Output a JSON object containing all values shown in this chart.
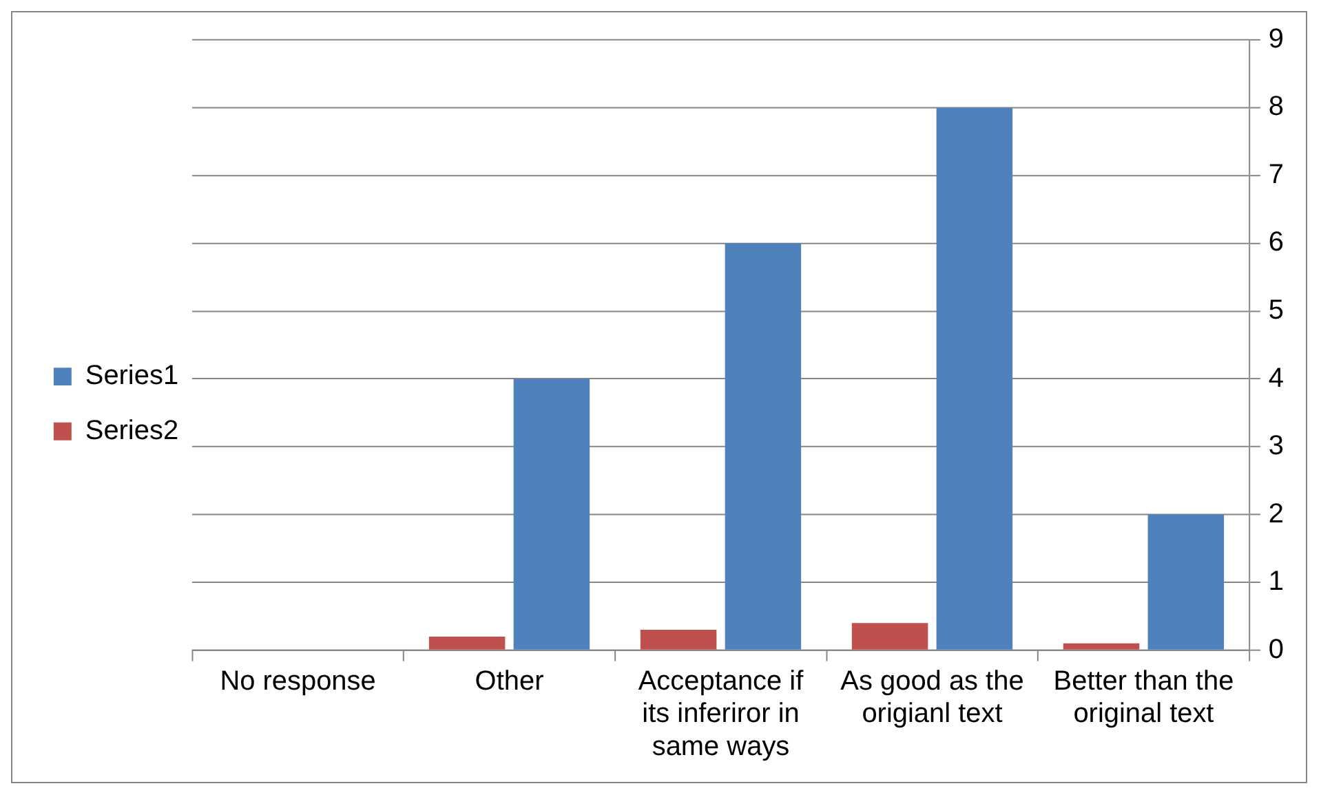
{
  "chart_data": {
    "type": "bar",
    "categories": [
      "No response",
      "Other",
      "Acceptance if its inferiror in same ways",
      "As good as the origianl text",
      "Better than the original text"
    ],
    "series": [
      {
        "name": "Series1",
        "color": "#4f81bd",
        "values": [
          0,
          4,
          6,
          8,
          2
        ]
      },
      {
        "name": "Series2",
        "color": "#c0504d",
        "values": [
          0,
          0.2,
          0.3,
          0.4,
          0.1
        ]
      }
    ],
    "ylim": [
      0,
      9
    ],
    "yticks": [
      0,
      1,
      2,
      3,
      4,
      5,
      6,
      7,
      8,
      9
    ],
    "grid": "y",
    "legend": "left"
  }
}
